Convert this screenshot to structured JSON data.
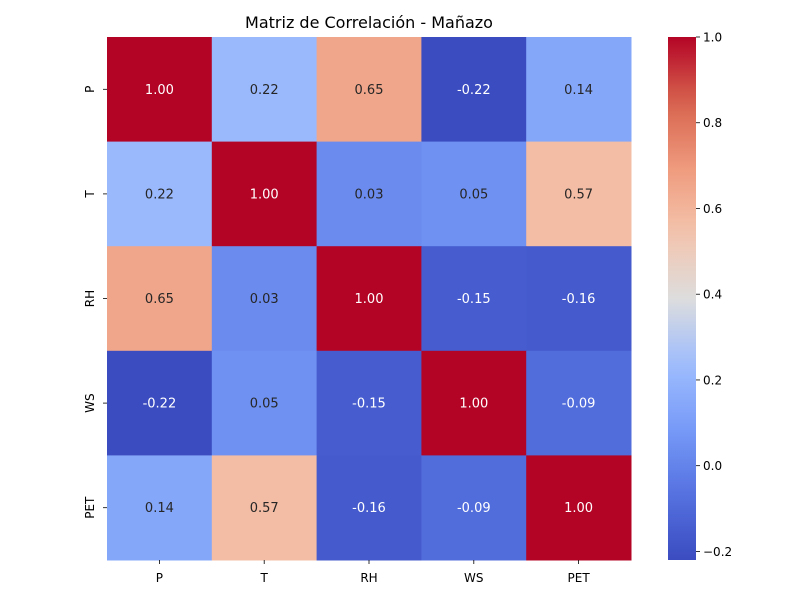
{
  "chart_data": {
    "type": "heatmap",
    "title": "Matriz de Correlación - Mañazo",
    "x_labels": [
      "P",
      "T",
      "RH",
      "WS",
      "PET"
    ],
    "y_labels": [
      "P",
      "T",
      "RH",
      "WS",
      "PET"
    ],
    "values": [
      [
        1.0,
        0.22,
        0.65,
        -0.22,
        0.14
      ],
      [
        0.22,
        1.0,
        0.03,
        0.05,
        0.57
      ],
      [
        0.65,
        0.03,
        1.0,
        -0.15,
        -0.16
      ],
      [
        -0.22,
        0.05,
        -0.15,
        1.0,
        -0.09
      ],
      [
        0.14,
        0.57,
        -0.16,
        -0.09,
        1.0
      ]
    ],
    "value_format": "0.00",
    "colormap": "coolwarm",
    "vmin": -0.22,
    "vmax": 1.0,
    "colorbar": {
      "ticks": [
        1.0,
        0.8,
        0.6,
        0.4,
        0.2,
        0.0,
        -0.2
      ],
      "tick_labels": [
        "1.0",
        "0.8",
        "0.6",
        "0.4",
        "0.2",
        "0.0",
        "−0.2"
      ]
    }
  }
}
